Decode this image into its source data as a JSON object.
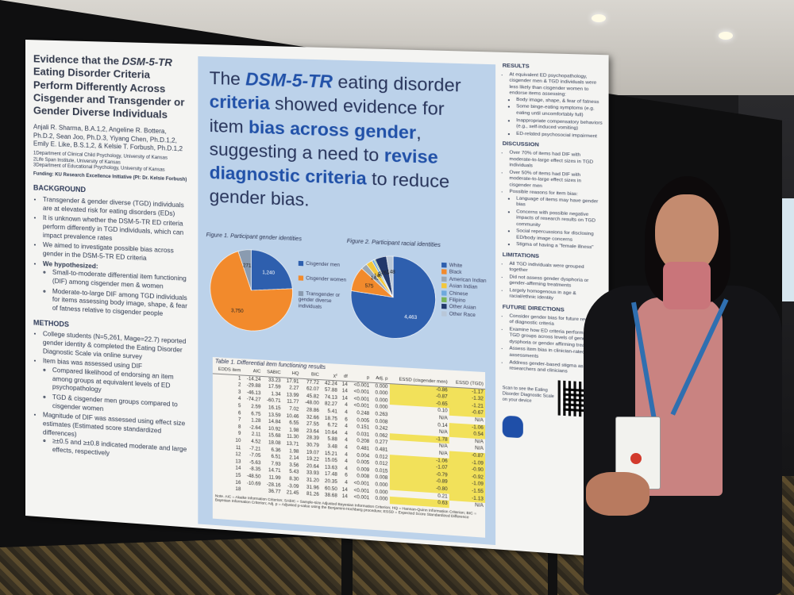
{
  "poster": {
    "title_lines": [
      "Evidence that the ",
      "DSM-5-TR",
      " Eating Disorder Criteria Perform Differently Across Cisgender and Transgender or Gender Diverse Individuals"
    ],
    "authors": "Anjali R. Sharma, B.A.1,2, Angeline R. Bottera, Ph.D.2, Sean Joo, Ph.D.3, Yiyang Chen, Ph.D.1,2, Emily E. Like, B.S.1,2, & Kelsie T. Forbush, Ph.D.1,2",
    "affiliations": [
      "1Department of Clinical Child Psychology, University of Kansas",
      "2Life Span Institute, University of Kansas",
      "3Department of Educational Psychology, University of Kansas"
    ],
    "funding": "Funding: KU Research Excellence Initiative (PI: Dr. Kelsie Forbush)",
    "background_heading": "BACKGROUND",
    "background_items": [
      "Transgender & gender diverse (TGD) individuals are at elevated risk for eating disorders (EDs)",
      "It is unknown whether the DSM-5-TR ED criteria perform differently in TGD individuals, which can impact prevalence rates",
      "We aimed to investigate possible bias across gender in the DSM-5-TR ED criteria",
      "We hypothesized:"
    ],
    "hypotheses": [
      "Small-to-moderate differential item functioning (DIF) among cisgender men & women",
      "Moderate-to-large DIF among TGD individuals for items assessing body image, shape, & fear of fatness relative to cisgender people"
    ],
    "methods_heading": "METHODS",
    "methods_items": [
      "College students (N=5,261, Mage=22.7) reported gender identity & completed the Eating Disorder Diagnostic Scale via online survey",
      "Item bias was assessed using DIF",
      "Compared likelihood of endorsing an item among groups at equivalent levels of ED psychopathology",
      "TGD & cisgender men groups compared to cisgender women",
      "Magnitude of DIF was assessed using effect size estimates (Estimated score standardized differences)",
      "≥±0.5 and ≥±0.8 indicated moderate and large effects, respectively"
    ],
    "headline": {
      "p1": "The ",
      "h1": "DSM-5-TR",
      "p2": " eating disorder ",
      "h2": "criteria",
      "p3": " showed evidence for item ",
      "h3": "bias across gender",
      "p4": ", suggesting a need to ",
      "h4": "revise diagnostic criteria",
      "p5": " to reduce gender bias."
    },
    "fig1_caption": "Figure 1. Participant gender identities",
    "fig2_caption": "Figure 2. Participant racial identities",
    "fig1_legend": [
      "Cisgender men",
      "Cisgender women",
      "Transgender or gender diverse individuals"
    ],
    "fig2_legend": [
      "White",
      "Black",
      "American Indian",
      "Asian Indian",
      "Chinese",
      "Filipino",
      "Other Asian",
      "Other Race"
    ],
    "table_caption": "Table 1. Differential item functioning results",
    "table_headers": [
      "EDDS item",
      "AIC",
      "SABIC",
      "HQ",
      "BIC",
      "χ²",
      "df",
      "p",
      "Adj. p",
      "ESSD (cisgender men)",
      "ESSD (TGD)"
    ],
    "table_note": "Note. AIC = Akaike Information Criterion; SABIC = Sample-size Adjusted Bayesian Information Criterion; HQ = Hannan-Quinn Information Criterion; BIC = Bayesian Information Criterion; Adj. p = Adjusted p-value using the Benjamini-Hochberg procedure; ESSD = Expected Score Standardized Difference",
    "results_heading": "RESULTS",
    "results_items": [
      "At equivalent ED psychopathology, cisgender men & TGD individuals were less likely than cisgender women to endorse items assessing:",
      "Body image, shape, & fear of fatness",
      "Some binge-eating symptoms (e.g. eating until uncomfortably full)",
      "Inappropriate compensatory behaviors (e.g., self-induced vomiting)",
      "ED-related psychosocial impairment"
    ],
    "discussion_heading": "DISCUSSION",
    "discussion_items": [
      "Over 70% of items had DIF with moderate-to-large effect sizes in TGD individuals",
      "Over 50% of items had DIF with moderate-to-large effect sizes in cisgender men",
      "Possible reasons for item bias:",
      "Language of items may have gender bias",
      "Concerns with possible negative impacts of research results on TGD community",
      "Social repercussions for disclosing ED/body image concerns",
      "Stigma of having a \"female illness\""
    ],
    "limitations_heading": "LIMITATIONS",
    "limitations_items": [
      "All TGD individuals were grouped together",
      "Did not assess gender dysphoria or gender-affirming treatments",
      "Largely homogenous in age & racial/ethnic identity"
    ],
    "future_heading": "FUTURE DIRECTIONS",
    "future_items": [
      "Consider gender bias for future revisions of diagnostic criteria",
      "Examine how ED criteria perform among TGD groups across levels of gender dysphoria or gender affirming treatments",
      "Assess item bias in clinician-rated assessments",
      "Address gender-based stigma as researchers and clinicians"
    ],
    "qr_caption": "Scan to see the Eating Disorder Diagnostic Scale on your device"
  },
  "chart_data": [
    {
      "type": "pie",
      "title": "Figure 1. Participant gender identities",
      "labels": [
        "Cisgender men",
        "Cisgender women",
        "Transgender or gender diverse individuals"
      ],
      "values": [
        1240,
        3750,
        271
      ],
      "colors": [
        "#2e5fae",
        "#f28a2c",
        "#8a9bb0"
      ]
    },
    {
      "type": "pie",
      "title": "Figure 2. Participant racial identities",
      "labels": [
        "White",
        "Black",
        "American Indian",
        "Asian Indian",
        "Chinese",
        "Filipino",
        "Other Asian",
        "Other Race"
      ],
      "values": [
        4463,
        575,
        142,
        148,
        52,
        27,
        261,
        148
      ],
      "colors": [
        "#2e5fae",
        "#f28a2c",
        "#9aa7b5",
        "#f3c73c",
        "#6fa9dd",
        "#79b35a",
        "#22386b",
        "#b9c7d8"
      ]
    },
    {
      "type": "table",
      "title": "Table 1. Differential item functioning results",
      "columns": [
        "EDDS item",
        "AIC",
        "SABIC",
        "HQ",
        "BIC",
        "χ²",
        "df",
        "p",
        "Adj. p",
        "ESSD (cisgender men)",
        "ESSD (TGD)"
      ],
      "rows": [
        [
          "1",
          "-14.24",
          "33.23",
          "17.91",
          "77.72",
          "42.24",
          "14",
          "<0.001",
          "0.000",
          "-0.86",
          "-1.17"
        ],
        [
          "2",
          "-29.88",
          "17.59",
          "2.27",
          "62.07",
          "57.88",
          "14",
          "<0.001",
          "0.000",
          "-0.87",
          "-1.32"
        ],
        [
          "3",
          "-46.13",
          "1.34",
          "13.99",
          "45.82",
          "74.13",
          "14",
          "<0.001",
          "0.000",
          "-0.65",
          "-1.21"
        ],
        [
          "4",
          "-74.27",
          "-60.71",
          "11.77",
          "-48.00",
          "82.27",
          "4",
          "<0.001",
          "0.000",
          "0.10",
          "-0.67"
        ],
        [
          "5",
          "2.59",
          "16.15",
          "7.02",
          "28.86",
          "5.41",
          "4",
          "0.248",
          "0.263",
          "N/A",
          "N/A"
        ],
        [
          "6",
          "6.75",
          "13.59",
          "10.46",
          "32.66",
          "18.75",
          "6",
          "0.005",
          "0.008",
          "0.14",
          "-1.06"
        ],
        [
          "7",
          "1.28",
          "14.84",
          "6.55",
          "27.55",
          "6.72",
          "4",
          "0.151",
          "0.242",
          "N/A",
          "0.54"
        ],
        [
          "8",
          "-2.64",
          "10.92",
          "1.98",
          "23.64",
          "10.64",
          "4",
          "0.031",
          "0.062",
          "-1.78",
          "N/A"
        ],
        [
          "9",
          "2.11",
          "15.68",
          "11.30",
          "28.39",
          "5.88",
          "4",
          "0.208",
          "0.277",
          "N/A",
          "N/A"
        ],
        [
          "10",
          "4.52",
          "18.08",
          "13.71",
          "30.79",
          "3.48",
          "4",
          "0.481",
          "0.481",
          "N/A",
          "-0.87"
        ],
        [
          "11",
          "-7.21",
          "6.36",
          "1.98",
          "19.07",
          "15.21",
          "4",
          "0.004",
          "0.012",
          "-1.06",
          "-1.09"
        ],
        [
          "12",
          "-7.05",
          "6.51",
          "2.14",
          "19.22",
          "15.05",
          "4",
          "0.005",
          "0.012",
          "-1.07",
          "-0.90"
        ],
        [
          "13",
          "-5.63",
          "7.93",
          "3.56",
          "20.64",
          "13.63",
          "4",
          "0.009",
          "0.015",
          "-0.79",
          "-0.92"
        ],
        [
          "14",
          "-8.35",
          "14.71",
          "5.43",
          "33.93",
          "17.48",
          "6",
          "0.008",
          "0.008",
          "-0.89",
          "-1.09"
        ],
        [
          "15",
          "-48.50",
          "11.99",
          "8.30",
          "31.20",
          "20.35",
          "4",
          "<0.001",
          "0.000",
          "-0.80",
          "-1.55"
        ],
        [
          "16",
          "-10.69",
          "-28.16",
          "-3.09",
          "31.96",
          "60.50",
          "14",
          "<0.001",
          "0.000",
          "0.21",
          "-1.13"
        ],
        [
          "18",
          "",
          "36.77",
          "21.45",
          "81.26",
          "38.68",
          "14",
          "<0.001",
          "0.000",
          "0.63",
          "N/A"
        ]
      ]
    }
  ]
}
